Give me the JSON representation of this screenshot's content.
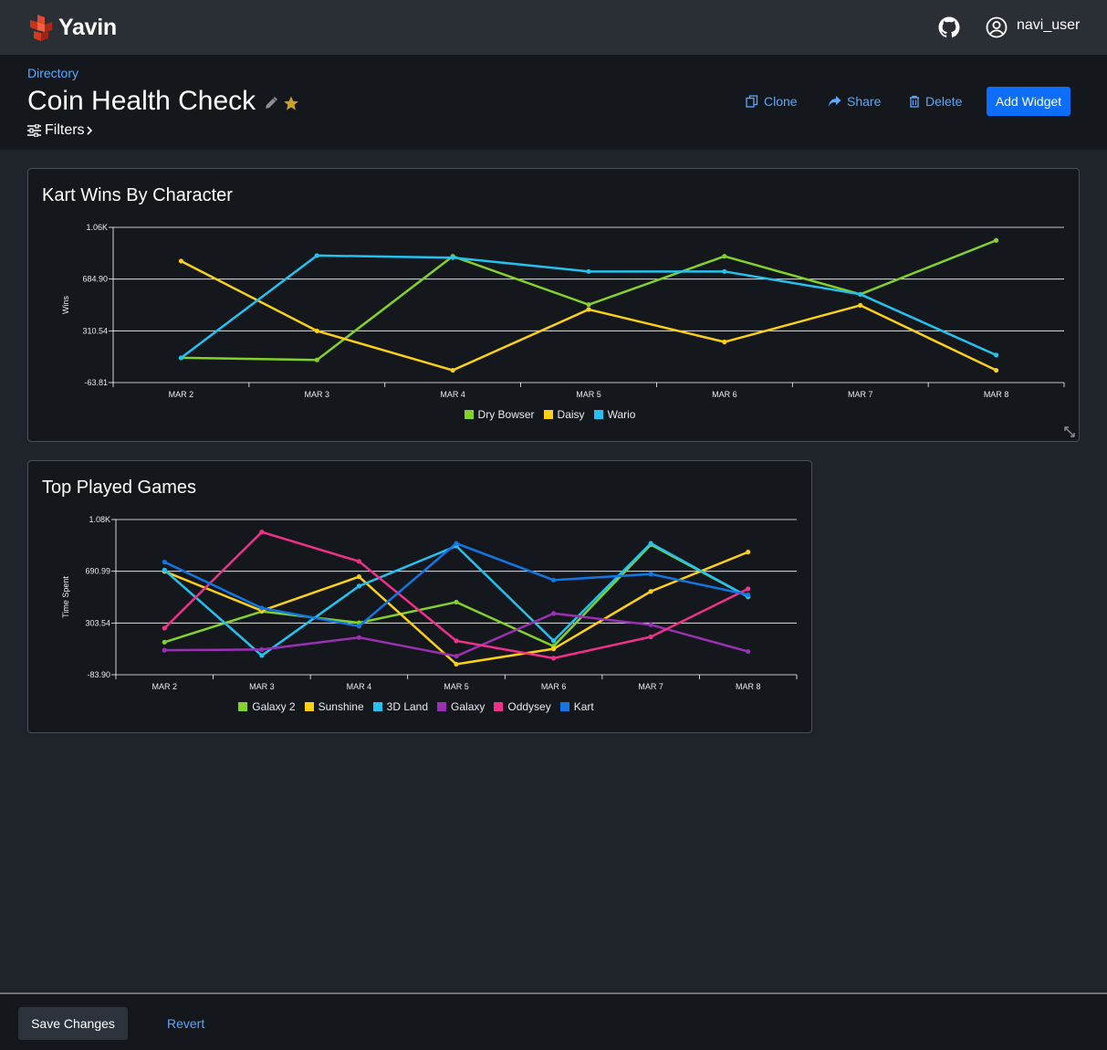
{
  "app": {
    "name": "Yavin",
    "user": "navi_user"
  },
  "icons": {
    "logo": "cube-logo-icon",
    "github": "github-icon",
    "user": "user-circle-icon",
    "edit": "pencil-icon",
    "favorite": "star-icon",
    "filters": "sliders-icon",
    "clone": "copy-icon",
    "share": "share-arrow-icon",
    "delete": "trash-icon",
    "resize": "resize-icon"
  },
  "colors": {
    "accent": "#0d6efd",
    "link": "#5aa8ff",
    "star": "#c9a227"
  },
  "header": {
    "breadcrumb": "Directory",
    "title": "Coin Health Check",
    "filters_label": "Filters",
    "actions": {
      "clone": "Clone",
      "share": "Share",
      "delete": "Delete",
      "add_widget": "Add Widget"
    }
  },
  "footer": {
    "save": "Save Changes",
    "revert": "Revert"
  },
  "chart_data": [
    {
      "type": "line",
      "title": "Kart Wins By Character",
      "xlabel": "",
      "ylabel": "Wins",
      "y_tick_labels": [
        "1.06K",
        "684.90",
        "310.54",
        "-63.81"
      ],
      "ylim": [
        -63.81,
        1059.26
      ],
      "grid": true,
      "legend": "bottom-center",
      "categories": [
        "MAR 2",
        "MAR 3",
        "MAR 4",
        "MAR 5",
        "MAR 6",
        "MAR 7",
        "MAR 8"
      ],
      "series": [
        {
          "name": "Dry Bowser",
          "color": "#84d12c",
          "values": [
            115,
            100,
            850,
            500,
            850,
            575,
            965
          ]
        },
        {
          "name": "Daisy",
          "color": "#fbd017",
          "values": [
            815,
            310,
            25,
            465,
            230,
            495,
            25
          ]
        },
        {
          "name": "Wario",
          "color": "#25c2f0",
          "values": [
            115,
            855,
            840,
            740,
            740,
            575,
            135
          ]
        }
      ]
    },
    {
      "type": "line",
      "title": "Top Played Games",
      "xlabel": "",
      "ylabel": "Time Spent",
      "y_tick_labels": [
        "1.08K",
        "690.99",
        "303.54",
        "-83.90"
      ],
      "ylim": [
        -83.9,
        1078.44
      ],
      "grid": true,
      "legend": "bottom-center",
      "categories": [
        "MAR 2",
        "MAR 3",
        "MAR 4",
        "MAR 5",
        "MAR 6",
        "MAR 7",
        "MAR 8"
      ],
      "series": [
        {
          "name": "Galaxy 2",
          "color": "#84d12c",
          "values": [
            160,
            390,
            305,
            460,
            130,
            890,
            500
          ]
        },
        {
          "name": "Sunshine",
          "color": "#fbd017",
          "values": [
            690,
            395,
            650,
            -5,
            110,
            540,
            835
          ]
        },
        {
          "name": "3D Land",
          "color": "#25c2f0",
          "values": [
            700,
            60,
            580,
            880,
            170,
            900,
            500
          ]
        },
        {
          "name": "Galaxy",
          "color": "#9b30b5",
          "values": [
            100,
            105,
            195,
            55,
            375,
            290,
            90
          ]
        },
        {
          "name": "Oddysey",
          "color": "#f0308a",
          "values": [
            265,
            985,
            765,
            170,
            40,
            200,
            560
          ]
        },
        {
          "name": "Kart",
          "color": "#1276e4",
          "values": [
            760,
            415,
            280,
            900,
            625,
            670,
            515
          ]
        }
      ]
    }
  ]
}
